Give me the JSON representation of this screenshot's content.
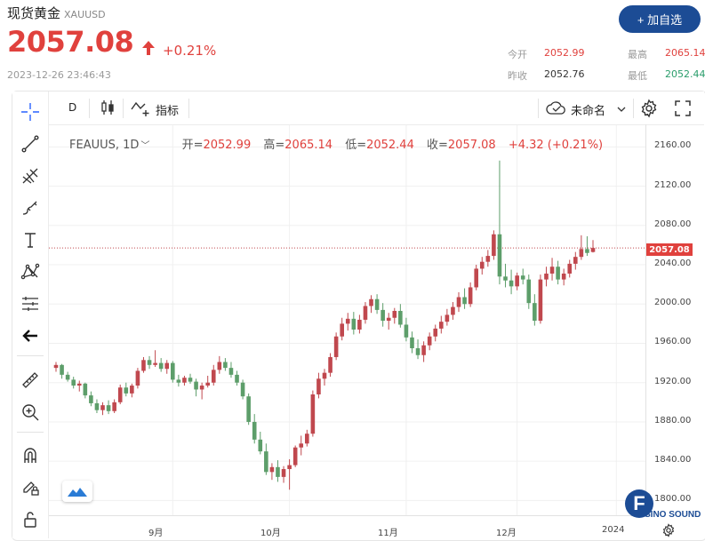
{
  "header": {
    "title": "现货黄金",
    "symbol": "XAUUSD",
    "price": "2057.08",
    "change": "+0.21%",
    "timestamp": "2023-12-26 23:46:43",
    "add_button": "+ 加自选"
  },
  "stats": [
    {
      "label": "今开",
      "value": "2052.99",
      "color": "red"
    },
    {
      "label": "最高",
      "value": "2065.14",
      "color": "red"
    },
    {
      "label": "昨收",
      "value": "2052.76",
      "color": "dark"
    },
    {
      "label": "最低",
      "value": "2052.44",
      "color": "green"
    }
  ],
  "toolbar": {
    "interval": "D",
    "indicators_label": "指标",
    "layout_name": "未命名"
  },
  "legend": {
    "symbol": "FEAUUS, 1D",
    "open_label": "开=",
    "open": "2052.99",
    "high_label": "高=",
    "high": "2065.14",
    "low_label": "低=",
    "low": "2052.44",
    "close_label": "收=",
    "close": "2057.08",
    "change": "+4.32 (+0.21%)"
  },
  "watermark": {
    "letter": "F",
    "brand": "SINO SOUND"
  },
  "colors": {
    "up": "#e0413d",
    "down": "#2a9d6b",
    "candle_up": "#c0484e",
    "candle_down": "#5d9e6a",
    "brand": "#1c4c95"
  },
  "chart_data": {
    "type": "candlestick",
    "yticks": [
      2160,
      2120,
      2080,
      2040,
      2000,
      1960,
      1920,
      1880,
      1840,
      1800
    ],
    "ytick_labels": [
      "2160.00",
      "2120.00",
      "2080.00",
      "2040.00",
      "2000.00",
      "1960.00",
      "1920.00",
      "1880.00",
      "1840.00",
      "1800.00"
    ],
    "xtick_labels": [
      "9月",
      "10月",
      "11月",
      "12月",
      "2024"
    ],
    "last_price_label": "2057.08",
    "last_price": 2057.08,
    "ylim": [
      1785,
      2182
    ],
    "candles": [
      [
        1935,
        1941,
        1931,
        1938
      ],
      [
        1938,
        1939,
        1924,
        1928
      ],
      [
        1928,
        1931,
        1921,
        1923
      ],
      [
        1923,
        1926,
        1914,
        1917
      ],
      [
        1917,
        1922,
        1911,
        1919
      ],
      [
        1919,
        1920,
        1904,
        1907
      ],
      [
        1907,
        1911,
        1896,
        1899
      ],
      [
        1899,
        1903,
        1889,
        1892
      ],
      [
        1892,
        1900,
        1887,
        1897
      ],
      [
        1897,
        1902,
        1888,
        1891
      ],
      [
        1891,
        1903,
        1889,
        1900
      ],
      [
        1900,
        1918,
        1898,
        1915
      ],
      [
        1915,
        1920,
        1906,
        1909
      ],
      [
        1909,
        1919,
        1905,
        1917
      ],
      [
        1917,
        1935,
        1914,
        1932
      ],
      [
        1932,
        1946,
        1930,
        1943
      ],
      [
        1943,
        1947,
        1934,
        1938
      ],
      [
        1938,
        1953,
        1936,
        1940
      ],
      [
        1940,
        1945,
        1931,
        1934
      ],
      [
        1934,
        1943,
        1929,
        1940
      ],
      [
        1940,
        1942,
        1920,
        1923
      ],
      [
        1923,
        1928,
        1916,
        1920
      ],
      [
        1920,
        1927,
        1917,
        1925
      ],
      [
        1925,
        1929,
        1919,
        1921
      ],
      [
        1921,
        1924,
        1906,
        1913
      ],
      [
        1913,
        1920,
        1903,
        1917
      ],
      [
        1917,
        1927,
        1915,
        1920
      ],
      [
        1920,
        1938,
        1917,
        1933
      ],
      [
        1933,
        1947,
        1929,
        1941
      ],
      [
        1941,
        1945,
        1932,
        1935
      ],
      [
        1935,
        1941,
        1925,
        1928
      ],
      [
        1928,
        1932,
        1917,
        1920
      ],
      [
        1920,
        1923,
        1903,
        1906
      ],
      [
        1906,
        1909,
        1877,
        1880
      ],
      [
        1880,
        1888,
        1858,
        1862
      ],
      [
        1862,
        1870,
        1847,
        1850
      ],
      [
        1850,
        1858,
        1826,
        1829
      ],
      [
        1829,
        1838,
        1821,
        1834
      ],
      [
        1834,
        1841,
        1819,
        1824
      ],
      [
        1824,
        1835,
        1818,
        1832
      ],
      [
        1832,
        1842,
        1811,
        1836
      ],
      [
        1836,
        1856,
        1834,
        1854
      ],
      [
        1854,
        1866,
        1846,
        1858
      ],
      [
        1858,
        1872,
        1855,
        1868
      ],
      [
        1868,
        1912,
        1865,
        1908
      ],
      [
        1908,
        1930,
        1904,
        1924
      ],
      [
        1924,
        1934,
        1917,
        1930
      ],
      [
        1930,
        1950,
        1926,
        1946
      ],
      [
        1946,
        1971,
        1943,
        1967
      ],
      [
        1967,
        1986,
        1963,
        1980
      ],
      [
        1980,
        1991,
        1973,
        1985
      ],
      [
        1985,
        1992,
        1969,
        1974
      ],
      [
        1974,
        1989,
        1970,
        1984
      ],
      [
        1984,
        2002,
        1980,
        1998
      ],
      [
        1998,
        2009,
        1991,
        2005
      ],
      [
        2005,
        2010,
        1990,
        1994
      ],
      [
        1994,
        2001,
        1977,
        1983
      ],
      [
        1983,
        1991,
        1974,
        1986
      ],
      [
        1986,
        1996,
        1980,
        1993
      ],
      [
        1993,
        2000,
        1976,
        1979
      ],
      [
        1979,
        1986,
        1962,
        1966
      ],
      [
        1966,
        1972,
        1950,
        1955
      ],
      [
        1955,
        1964,
        1944,
        1948
      ],
      [
        1948,
        1962,
        1941,
        1958
      ],
      [
        1958,
        1971,
        1953,
        1967
      ],
      [
        1967,
        1979,
        1962,
        1975
      ],
      [
        1975,
        1988,
        1970,
        1982
      ],
      [
        1982,
        1995,
        1978,
        1989
      ],
      [
        1989,
        2002,
        1984,
        1997
      ],
      [
        1997,
        2012,
        1992,
        2007
      ],
      [
        2007,
        2016,
        1995,
        2000
      ],
      [
        2000,
        2022,
        1997,
        2017
      ],
      [
        2017,
        2040,
        2014,
        2036
      ],
      [
        2036,
        2048,
        2030,
        2043
      ],
      [
        2043,
        2055,
        2038,
        2049
      ],
      [
        2049,
        2075,
        2045,
        2071
      ],
      [
        2071,
        2146,
        2020,
        2028
      ],
      [
        2028,
        2041,
        2017,
        2024
      ],
      [
        2024,
        2035,
        2010,
        2018
      ],
      [
        2018,
        2032,
        2014,
        2029
      ],
      [
        2029,
        2036,
        2020,
        2025
      ],
      [
        2025,
        2030,
        1995,
        2001
      ],
      [
        2001,
        2010,
        1978,
        1983
      ],
      [
        1983,
        2030,
        1980,
        2025
      ],
      [
        2025,
        2038,
        2018,
        2031
      ],
      [
        2031,
        2047,
        2024,
        2038
      ],
      [
        2038,
        2044,
        2020,
        2025
      ],
      [
        2025,
        2036,
        2019,
        2031
      ],
      [
        2031,
        2045,
        2027,
        2041
      ],
      [
        2041,
        2053,
        2035,
        2048
      ],
      [
        2048,
        2070,
        2045,
        2056
      ],
      [
        2056,
        2069,
        2049,
        2052
      ],
      [
        2052.99,
        2065.14,
        2052.44,
        2057.08
      ]
    ]
  }
}
